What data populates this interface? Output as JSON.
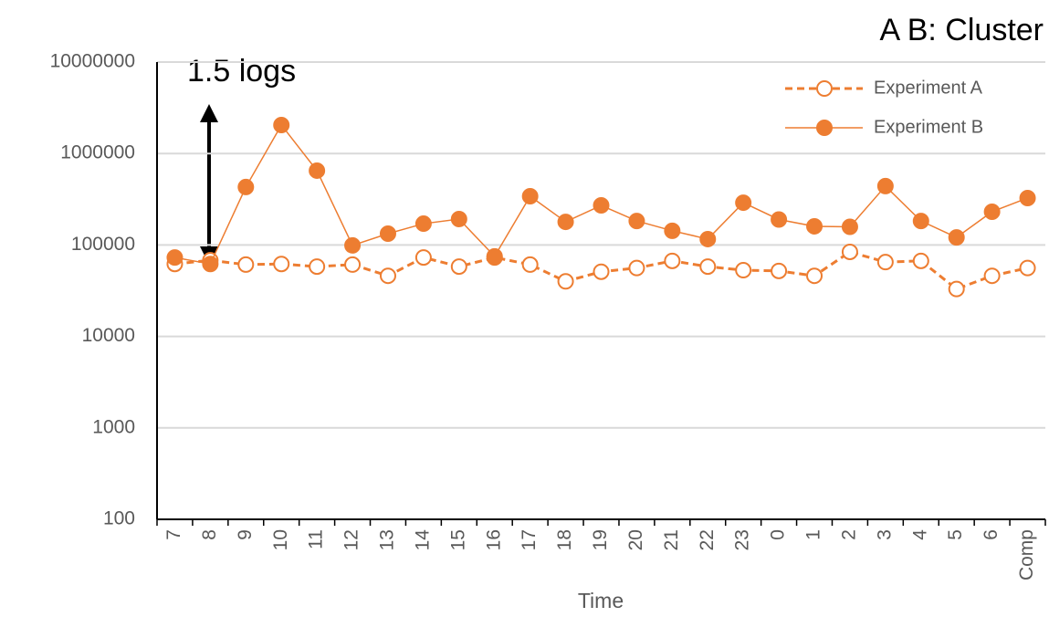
{
  "chart_data": {
    "type": "line",
    "title": "A B: Cluster",
    "annotation": "1.5 logs",
    "x_label": "Time",
    "categories": [
      "7",
      "8",
      "9",
      "10",
      "11",
      "12",
      "13",
      "14",
      "15",
      "16",
      "17",
      "18",
      "19",
      "20",
      "21",
      "22",
      "23",
      "0",
      "1",
      "2",
      "3",
      "4",
      "5",
      "6",
      "Comp"
    ],
    "series": [
      {
        "name": "Experiment A",
        "color": "#ED7D31",
        "line_style": "dashed",
        "marker": "open",
        "values": [
          62000,
          68000,
          61000,
          62000,
          58000,
          61000,
          46000,
          73000,
          58000,
          73000,
          61000,
          40000,
          51000,
          56000,
          67000,
          58000,
          53000,
          52000,
          46000,
          84000,
          65000,
          67000,
          33000,
          46000,
          56000
        ]
      },
      {
        "name": "Experiment B",
        "color": "#ED7D31",
        "line_style": "solid",
        "marker": "filled",
        "values": [
          73000,
          62000,
          430000,
          2050000,
          650000,
          99000,
          133000,
          171000,
          192000,
          75000,
          341000,
          179000,
          271000,
          183000,
          143000,
          116000,
          290000,
          190000,
          160000,
          158000,
          440000,
          183000,
          121000,
          231000,
          326000
        ]
      }
    ],
    "ylim": [
      100,
      10000000
    ],
    "yticks": [
      100,
      1000,
      10000,
      100000,
      1000000,
      10000000
    ],
    "log_y": true,
    "grid": true,
    "legend": "upper right"
  }
}
